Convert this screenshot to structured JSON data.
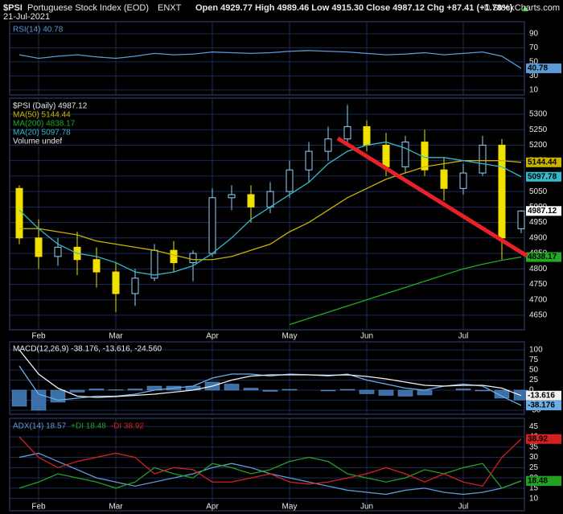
{
  "header": {
    "symbol": "$PSI",
    "name": "Portuguese Stock Index (EOD)",
    "exchange": "ENXT",
    "date": "21-Jul-2021",
    "ohlc": "Open 4929.77 High 4989.46 Low 4915.30 Close 4987.12 Chg +87.41 (+1.78%)",
    "copyright": "© StockCharts.com"
  },
  "chart_data": [
    {
      "type": "line",
      "ylim": [
        3,
        107
      ],
      "yticks": [
        10,
        30,
        50,
        70,
        90
      ],
      "grid": true,
      "series": [
        {
          "name": "RSI(14) 40.78",
          "color": "#5b9bd5",
          "values": [
            60,
            55,
            58,
            60,
            57,
            55,
            58,
            62,
            60,
            61,
            64,
            63,
            62,
            63,
            65,
            66,
            65,
            64,
            62,
            60,
            61,
            63,
            60,
            62,
            64,
            58,
            40.78
          ]
        }
      ]
    },
    {
      "type": "candlestick",
      "name": "$PSI (Daily) 4987.12",
      "categories": [
        null,
        "Feb",
        null,
        null,
        null,
        "Mar",
        null,
        null,
        null,
        null,
        "Apr",
        null,
        null,
        null,
        "May",
        null,
        null,
        null,
        "Jun",
        null,
        null,
        null,
        null,
        "Jul",
        null,
        null,
        null
      ],
      "open": [
        5060,
        4900,
        4840,
        4870,
        4830,
        4790,
        4720,
        4770,
        4860,
        4820,
        4850,
        5030,
        5040,
        5000,
        5050,
        5120,
        5180,
        5220,
        5260,
        5200,
        5130,
        5210,
        5120,
        5060,
        5110,
        5200,
        4929.77
      ],
      "high": [
        5070,
        4960,
        4900,
        4920,
        4870,
        4820,
        4800,
        4880,
        4890,
        4860,
        5060,
        5070,
        5070,
        5080,
        5150,
        5210,
        5260,
        5330,
        5280,
        5240,
        5230,
        5250,
        5160,
        5140,
        5230,
        5220,
        4989.46
      ],
      "low": [
        4880,
        4800,
        4810,
        4780,
        4740,
        4660,
        4680,
        4760,
        4790,
        4760,
        4840,
        4990,
        4950,
        4980,
        5030,
        5080,
        5150,
        5200,
        5180,
        5100,
        5110,
        5100,
        5020,
        5040,
        5100,
        4830,
        4915.3
      ],
      "close": [
        4900,
        4840,
        4870,
        4830,
        4790,
        4720,
        4770,
        4860,
        4820,
        4850,
        5030,
        5040,
        5000,
        5050,
        5120,
        5180,
        5220,
        5260,
        5200,
        5130,
        5210,
        5120,
        5060,
        5110,
        5200,
        4900,
        4987.12
      ],
      "up_color": "#8fd3ff",
      "down_color": "#f0e000",
      "ylim": [
        4603,
        5352
      ],
      "yticks": [
        4650,
        4700,
        4750,
        4800,
        4850,
        4900,
        4950,
        5000,
        5050,
        5100,
        5150,
        5200,
        5250,
        5300
      ],
      "grid": true,
      "series": [
        {
          "name": "MA(50) 5144.44",
          "color": "#c8b400",
          "values": [
            4930,
            4930,
            4920,
            4910,
            4890,
            4880,
            4870,
            4860,
            4845,
            4830,
            4830,
            4840,
            4860,
            4880,
            4920,
            4950,
            4990,
            5030,
            5060,
            5090,
            5110,
            5130,
            5140,
            5150,
            5150,
            5150,
            5144.44
          ]
        },
        {
          "name": "MA(200) 4838.17",
          "color": "#22aa22",
          "values": [
            null,
            null,
            null,
            null,
            null,
            null,
            null,
            null,
            null,
            null,
            null,
            null,
            null,
            null,
            4620,
            4640,
            4660,
            4680,
            4700,
            4720,
            4740,
            4760,
            4780,
            4800,
            4815,
            4828,
            4838.17
          ]
        },
        {
          "name": "MA(20) 5097.78",
          "color": "#35b8c8",
          "values": [
            4990,
            4930,
            4880,
            4850,
            4840,
            4820,
            4790,
            4780,
            4790,
            4810,
            4850,
            4900,
            4960,
            5000,
            5040,
            5080,
            5140,
            5180,
            5200,
            5210,
            5190,
            5160,
            5160,
            5150,
            5140,
            5130,
            5097.78
          ]
        }
      ],
      "annotation": "Volume undef"
    },
    {
      "type": "line",
      "title": "MACD(12,26,9) -38.176, -13.616, -24.560",
      "ylim": [
        -60,
        120
      ],
      "yticks": [
        -50,
        -25,
        0,
        25,
        50,
        75,
        100
      ],
      "grid": true,
      "series": [
        {
          "color": "#3b6fa8",
          "type": "bar",
          "values": [
            -40,
            -50,
            -30,
            -5,
            3,
            1,
            3,
            10,
            10,
            10,
            20,
            15,
            5,
            -3,
            2,
            0,
            -2,
            2,
            -9,
            -13,
            -15,
            -12,
            0,
            3,
            -2,
            -20,
            -24.56
          ]
        },
        {
          "color": "#6aaee8",
          "values": [
            60,
            -10,
            -25,
            -20,
            -15,
            -15,
            -10,
            0,
            5,
            10,
            30,
            40,
            40,
            35,
            40,
            38,
            35,
            40,
            25,
            15,
            5,
            0,
            10,
            15,
            10,
            -15,
            -38.176
          ]
        },
        {
          "color": "#f0f0f0",
          "values": [
            100,
            40,
            5,
            -15,
            -18,
            -16,
            -13,
            -10,
            -5,
            0,
            10,
            25,
            35,
            38,
            38,
            38,
            37,
            38,
            34,
            28,
            20,
            12,
            10,
            12,
            12,
            5,
            -13.616
          ]
        }
      ]
    },
    {
      "type": "line",
      "ylim": [
        4,
        49
      ],
      "yticks": [
        10,
        15,
        20,
        25,
        30,
        35,
        40,
        45
      ],
      "grid": true,
      "series": [
        {
          "name": "ADX(14) 18.57",
          "color": "#5b9bd5",
          "values": [
            30,
            32,
            28,
            24,
            20,
            18,
            16,
            18,
            20,
            22,
            25,
            27,
            25,
            22,
            20,
            18,
            16,
            14,
            13,
            12,
            14,
            15,
            13,
            12,
            13,
            15,
            18.57
          ]
        },
        {
          "name": "+DI 18.48",
          "color": "#22a022",
          "values": [
            15,
            18,
            22,
            20,
            18,
            15,
            18,
            25,
            22,
            20,
            27,
            25,
            22,
            24,
            28,
            30,
            28,
            22,
            20,
            18,
            20,
            24,
            22,
            25,
            27,
            15,
            18.48
          ]
        },
        {
          "name": "-DI 38.92",
          "color": "#d42020",
          "values": [
            40,
            30,
            25,
            28,
            30,
            32,
            30,
            22,
            25,
            24,
            18,
            18,
            20,
            22,
            18,
            17,
            18,
            20,
            22,
            25,
            22,
            18,
            22,
            18,
            16,
            30,
            38.92
          ]
        }
      ]
    }
  ]
}
